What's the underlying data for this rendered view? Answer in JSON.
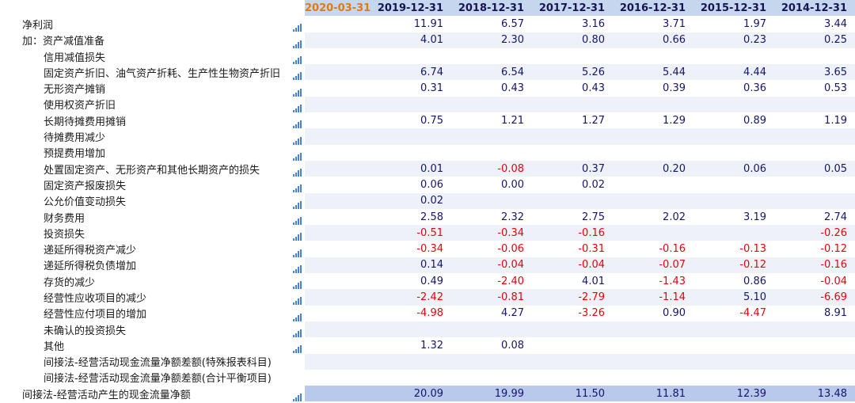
{
  "header": {
    "dates": [
      "2020-03-31",
      "2019-12-31",
      "2018-12-31",
      "2017-12-31",
      "2016-12-31",
      "2015-12-31",
      "2014-12-31"
    ]
  },
  "accent_colors": {
    "first_date": "#e07a10",
    "negative": "#e8000b",
    "positive": "#15156b",
    "header_bg": "#c7d6ef",
    "total_bg": "#b8c9eb"
  },
  "icon_name": "bar-chart-icon",
  "rows": [
    {
      "label": "净利润",
      "level": 0,
      "icon": true,
      "values": [
        "",
        "11.91",
        "6.57",
        "3.16",
        "3.71",
        "1.97",
        "3.44"
      ]
    },
    {
      "label": "加：资产减值准备",
      "level": 0,
      "icon": true,
      "values": [
        "",
        "4.01",
        "2.30",
        "0.80",
        "0.66",
        "0.23",
        "0.25"
      ]
    },
    {
      "label": "信用减值损失",
      "level": 1,
      "icon": true,
      "values": [
        "",
        "",
        "",
        "",
        "",
        "",
        ""
      ]
    },
    {
      "label": "固定资产折旧、油气资产折耗、生产性生物资产折旧",
      "level": 1,
      "icon": true,
      "values": [
        "",
        "6.74",
        "6.54",
        "5.26",
        "5.44",
        "4.44",
        "3.65"
      ]
    },
    {
      "label": "无形资产摊销",
      "level": 1,
      "icon": true,
      "values": [
        "",
        "0.31",
        "0.43",
        "0.43",
        "0.39",
        "0.36",
        "0.53"
      ]
    },
    {
      "label": "使用权资产折旧",
      "level": 1,
      "icon": true,
      "values": [
        "",
        "",
        "",
        "",
        "",
        "",
        ""
      ]
    },
    {
      "label": "长期待摊费用摊销",
      "level": 1,
      "icon": true,
      "values": [
        "",
        "0.75",
        "1.21",
        "1.27",
        "1.29",
        "0.89",
        "1.19"
      ]
    },
    {
      "label": "待摊费用减少",
      "level": 1,
      "icon": true,
      "values": [
        "",
        "",
        "",
        "",
        "",
        "",
        ""
      ]
    },
    {
      "label": "预提费用增加",
      "level": 1,
      "icon": true,
      "values": [
        "",
        "",
        "",
        "",
        "",
        "",
        ""
      ]
    },
    {
      "label": "处置固定资产、无形资产和其他长期资产的损失",
      "level": 1,
      "icon": true,
      "values": [
        "",
        "0.01",
        "-0.08",
        "0.37",
        "0.20",
        "0.06",
        "0.05"
      ]
    },
    {
      "label": "固定资产报废损失",
      "level": 1,
      "icon": true,
      "values": [
        "",
        "0.06",
        "0.00",
        "0.02",
        "",
        "",
        ""
      ]
    },
    {
      "label": "公允价值变动损失",
      "level": 1,
      "icon": true,
      "values": [
        "",
        "0.02",
        "",
        "",
        "",
        "",
        ""
      ]
    },
    {
      "label": "财务费用",
      "level": 1,
      "icon": true,
      "values": [
        "",
        "2.58",
        "2.32",
        "2.75",
        "2.02",
        "3.19",
        "2.74"
      ]
    },
    {
      "label": "投资损失",
      "level": 1,
      "icon": true,
      "values": [
        "",
        "-0.51",
        "-0.34",
        "-0.16",
        "",
        "",
        "-0.26"
      ]
    },
    {
      "label": "递延所得税资产减少",
      "level": 1,
      "icon": true,
      "values": [
        "",
        "-0.34",
        "-0.06",
        "-0.31",
        "-0.16",
        "-0.13",
        "-0.12"
      ]
    },
    {
      "label": "递延所得税负债增加",
      "level": 1,
      "icon": true,
      "values": [
        "",
        "0.14",
        "-0.04",
        "-0.04",
        "-0.07",
        "-0.12",
        "-0.16"
      ]
    },
    {
      "label": "存货的减少",
      "level": 1,
      "icon": true,
      "values": [
        "",
        "0.49",
        "-2.40",
        "4.01",
        "-1.43",
        "0.86",
        "-0.04"
      ]
    },
    {
      "label": "经营性应收项目的减少",
      "level": 1,
      "icon": true,
      "values": [
        "",
        "-2.42",
        "-0.81",
        "-2.79",
        "-1.14",
        "5.10",
        "-6.69"
      ]
    },
    {
      "label": "经营性应付项目的增加",
      "level": 1,
      "icon": true,
      "values": [
        "",
        "-4.98",
        "4.27",
        "-3.26",
        "0.90",
        "-4.47",
        "8.91"
      ]
    },
    {
      "label": "未确认的投资损失",
      "level": 1,
      "icon": true,
      "values": [
        "",
        "",
        "",
        "",
        "",
        "",
        ""
      ]
    },
    {
      "label": "其他",
      "level": 1,
      "icon": true,
      "values": [
        "",
        "1.32",
        "0.08",
        "",
        "",
        "",
        ""
      ]
    },
    {
      "label": "间接法-经营活动现金流量净额差额(特殊报表科目)",
      "level": 1,
      "icon": false,
      "values": [
        "",
        "",
        "",
        "",
        "",
        "",
        ""
      ]
    },
    {
      "label": "间接法-经营活动现金流量净额差额(合计平衡项目)",
      "level": 1,
      "icon": false,
      "values": [
        "",
        "",
        "",
        "",
        "",
        "",
        ""
      ]
    },
    {
      "label": "间接法-经营活动产生的现金流量净额",
      "level": 0,
      "icon": true,
      "total": true,
      "values": [
        "",
        "20.09",
        "19.99",
        "11.50",
        "11.81",
        "12.39",
        "13.48"
      ]
    }
  ]
}
